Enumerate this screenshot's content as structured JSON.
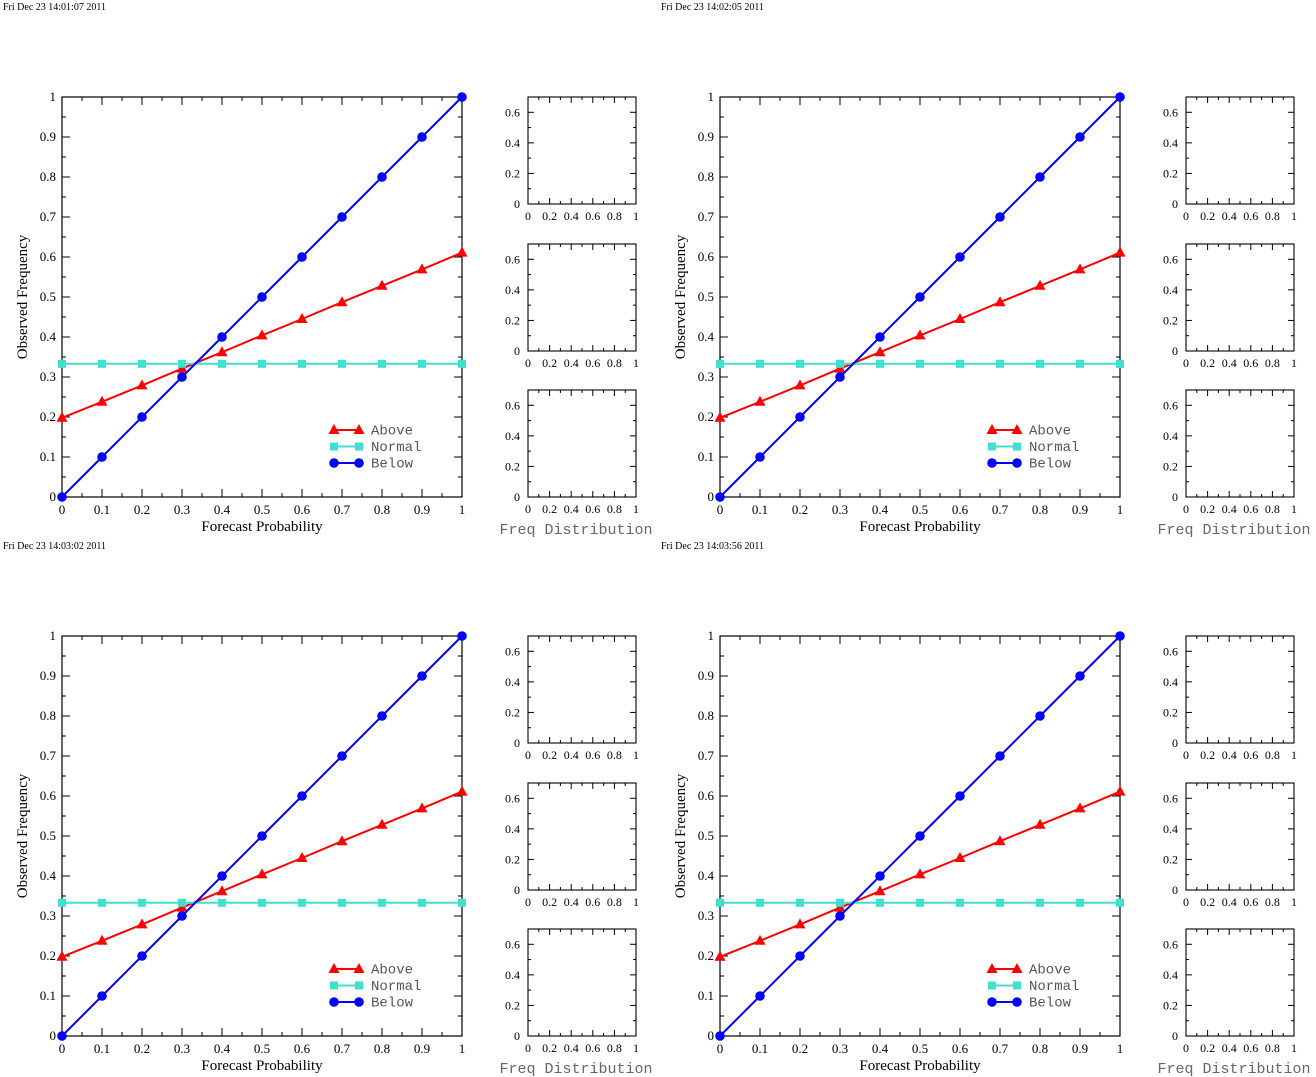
{
  "colors": {
    "above": "#ff0000",
    "normal": "#40e0d0",
    "below": "#0000ff",
    "axis": "#000000",
    "hist_label": "#666666"
  },
  "chart_data": [
    {
      "type": "line",
      "timestamp": "Fri Dec 23 14:01:07 2011",
      "xlabel": "Forecast Probability",
      "ylabel": "Observed Frequency",
      "xlim": [
        0,
        1
      ],
      "ylim": [
        0,
        1
      ],
      "ticks": [
        "0",
        "0.1",
        "0.2",
        "0.3",
        "0.4",
        "0.5",
        "0.6",
        "0.7",
        "0.8",
        "0.9",
        "1"
      ],
      "legend_position": "bottom-right",
      "grid": false,
      "x": [
        0,
        0.1,
        0.2,
        0.3,
        0.4,
        0.5,
        0.6,
        0.7,
        0.8,
        0.9,
        1
      ],
      "series": [
        {
          "name": "Above",
          "marker": "triangle",
          "color": "#ff0000",
          "values": [
            0.198,
            0.238,
            0.279,
            0.321,
            0.362,
            0.404,
            0.445,
            0.487,
            0.528,
            0.569,
            0.611
          ]
        },
        {
          "name": "Normal",
          "marker": "square",
          "color": "#40e0d0",
          "values": [
            0.333,
            0.333,
            0.333,
            0.333,
            0.333,
            0.333,
            0.333,
            0.333,
            0.333,
            0.333,
            0.333
          ]
        },
        {
          "name": "Below",
          "marker": "circle",
          "color": "#0000ff",
          "values": [
            0,
            0.1,
            0.2,
            0.3,
            0.4,
            0.5,
            0.6,
            0.7,
            0.8,
            0.9,
            1
          ]
        }
      ],
      "histograms": {
        "label": "Freq Distribution",
        "xlim": [
          0,
          1
        ],
        "ylim": [
          0,
          0.7
        ],
        "xticks": [
          "0",
          "0.2",
          "0.4",
          "0.6",
          "0.8",
          "1"
        ],
        "yticks": [
          "0",
          "0.2",
          "0.4",
          "0.6"
        ],
        "panels": 3
      }
    },
    {
      "type": "line",
      "timestamp": "Fri Dec 23 14:02:05 2011",
      "xlabel": "Forecast Probability",
      "ylabel": "Observed Frequency",
      "xlim": [
        0,
        1
      ],
      "ylim": [
        0,
        1
      ],
      "ticks": [
        "0",
        "0.1",
        "0.2",
        "0.3",
        "0.4",
        "0.5",
        "0.6",
        "0.7",
        "0.8",
        "0.9",
        "1"
      ],
      "legend_position": "bottom-right",
      "grid": false,
      "x": [
        0,
        0.1,
        0.2,
        0.3,
        0.4,
        0.5,
        0.6,
        0.7,
        0.8,
        0.9,
        1
      ],
      "series": [
        {
          "name": "Above",
          "marker": "triangle",
          "color": "#ff0000",
          "values": [
            0.198,
            0.238,
            0.279,
            0.321,
            0.362,
            0.404,
            0.445,
            0.487,
            0.528,
            0.569,
            0.611
          ]
        },
        {
          "name": "Normal",
          "marker": "square",
          "color": "#40e0d0",
          "values": [
            0.333,
            0.333,
            0.333,
            0.333,
            0.333,
            0.333,
            0.333,
            0.333,
            0.333,
            0.333,
            0.333
          ]
        },
        {
          "name": "Below",
          "marker": "circle",
          "color": "#0000ff",
          "values": [
            0,
            0.1,
            0.2,
            0.3,
            0.4,
            0.5,
            0.6,
            0.7,
            0.8,
            0.9,
            1
          ]
        }
      ],
      "histograms": {
        "label": "Freq Distribution",
        "xlim": [
          0,
          1
        ],
        "ylim": [
          0,
          0.7
        ],
        "xticks": [
          "0",
          "0.2",
          "0.4",
          "0.6",
          "0.8",
          "1"
        ],
        "yticks": [
          "0",
          "0.2",
          "0.4",
          "0.6"
        ],
        "panels": 3
      }
    },
    {
      "type": "line",
      "timestamp": "Fri Dec 23 14:03:02 2011",
      "xlabel": "Forecast Probability",
      "ylabel": "Observed Frequency",
      "xlim": [
        0,
        1
      ],
      "ylim": [
        0,
        1
      ],
      "ticks": [
        "0",
        "0.1",
        "0.2",
        "0.3",
        "0.4",
        "0.5",
        "0.6",
        "0.7",
        "0.8",
        "0.9",
        "1"
      ],
      "legend_position": "bottom-right",
      "grid": false,
      "x": [
        0,
        0.1,
        0.2,
        0.3,
        0.4,
        0.5,
        0.6,
        0.7,
        0.8,
        0.9,
        1
      ],
      "series": [
        {
          "name": "Above",
          "marker": "triangle",
          "color": "#ff0000",
          "values": [
            0.198,
            0.238,
            0.279,
            0.321,
            0.362,
            0.404,
            0.445,
            0.487,
            0.528,
            0.569,
            0.611
          ]
        },
        {
          "name": "Normal",
          "marker": "square",
          "color": "#40e0d0",
          "values": [
            0.333,
            0.333,
            0.333,
            0.333,
            0.333,
            0.333,
            0.333,
            0.333,
            0.333,
            0.333,
            0.333
          ]
        },
        {
          "name": "Below",
          "marker": "circle",
          "color": "#0000ff",
          "values": [
            0,
            0.1,
            0.2,
            0.3,
            0.4,
            0.5,
            0.6,
            0.7,
            0.8,
            0.9,
            1
          ]
        }
      ],
      "histograms": {
        "label": "Freq Distribution",
        "xlim": [
          0,
          1
        ],
        "ylim": [
          0,
          0.7
        ],
        "xticks": [
          "0",
          "0.2",
          "0.4",
          "0.6",
          "0.8",
          "1"
        ],
        "yticks": [
          "0",
          "0.2",
          "0.4",
          "0.6"
        ],
        "panels": 3
      }
    },
    {
      "type": "line",
      "timestamp": "Fri Dec 23 14:03:56 2011",
      "xlabel": "Forecast Probability",
      "ylabel": "Observed Frequency",
      "xlim": [
        0,
        1
      ],
      "ylim": [
        0,
        1
      ],
      "ticks": [
        "0",
        "0.1",
        "0.2",
        "0.3",
        "0.4",
        "0.5",
        "0.6",
        "0.7",
        "0.8",
        "0.9",
        "1"
      ],
      "legend_position": "bottom-right",
      "grid": false,
      "x": [
        0,
        0.1,
        0.2,
        0.3,
        0.4,
        0.5,
        0.6,
        0.7,
        0.8,
        0.9,
        1
      ],
      "series": [
        {
          "name": "Above",
          "marker": "triangle",
          "color": "#ff0000",
          "values": [
            0.198,
            0.238,
            0.279,
            0.321,
            0.362,
            0.404,
            0.445,
            0.487,
            0.528,
            0.569,
            0.611
          ]
        },
        {
          "name": "Normal",
          "marker": "square",
          "color": "#40e0d0",
          "values": [
            0.333,
            0.333,
            0.333,
            0.333,
            0.333,
            0.333,
            0.333,
            0.333,
            0.333,
            0.333,
            0.333
          ]
        },
        {
          "name": "Below",
          "marker": "circle",
          "color": "#0000ff",
          "values": [
            0,
            0.1,
            0.2,
            0.3,
            0.4,
            0.5,
            0.6,
            0.7,
            0.8,
            0.9,
            1
          ]
        }
      ],
      "histograms": {
        "label": "Freq Distribution",
        "xlim": [
          0,
          1
        ],
        "ylim": [
          0,
          0.7
        ],
        "xticks": [
          "0",
          "0.2",
          "0.4",
          "0.6",
          "0.8",
          "1"
        ],
        "yticks": [
          "0",
          "0.2",
          "0.4",
          "0.6"
        ],
        "panels": 3
      }
    }
  ]
}
